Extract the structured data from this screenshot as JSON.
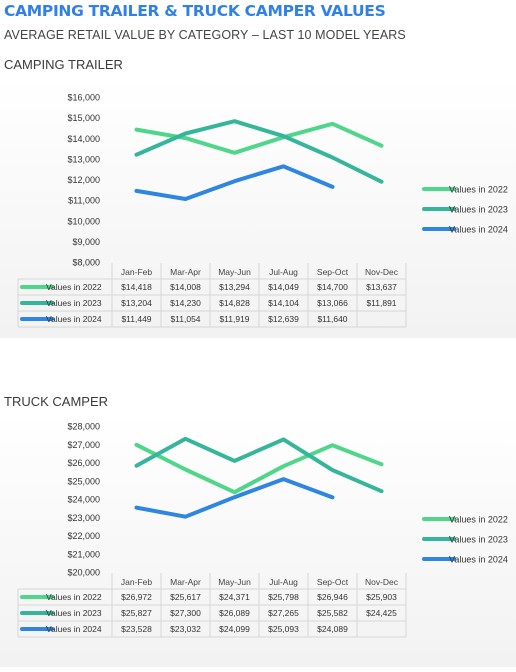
{
  "header": {
    "title": "CAMPING TRAILER & TRUCK CAMPER VALUES",
    "subtitle": "AVERAGE RETAIL VALUE BY CATEGORY – LAST 10 MODEL YEARS"
  },
  "sections": [
    {
      "label": "CAMPING TRAILER"
    },
    {
      "label": "TRUCK CAMPER"
    }
  ],
  "colors": {
    "2022": "#4fd68a",
    "2023": "#35b59a",
    "2024": "#2f86e0"
  },
  "chart_data": [
    {
      "type": "line",
      "title": "CAMPING TRAILER",
      "categories": [
        "Jan-Feb",
        "Mar-Apr",
        "May-Jun",
        "Jul-Aug",
        "Sep-Oct",
        "Nov-Dec"
      ],
      "ylim": [
        8000,
        16000
      ],
      "yticks": [
        "$8,000",
        "$9,000",
        "$10,000",
        "$11,000",
        "$12,000",
        "$13,000",
        "$14,000",
        "$15,000",
        "$16,000"
      ],
      "ytick_values": [
        8000,
        9000,
        10000,
        11000,
        12000,
        13000,
        14000,
        15000,
        16000
      ],
      "legend": "right",
      "data_table": true,
      "series": [
        {
          "name": "Values in 2022",
          "values": [
            14418,
            14008,
            13294,
            14049,
            14700,
            13637
          ],
          "labels": [
            "$14,418",
            "$14,008",
            "$13,294",
            "$14,049",
            "$14,700",
            "$13,637"
          ],
          "color": "#4fd68a"
        },
        {
          "name": "Values in 2023",
          "values": [
            13204,
            14230,
            14828,
            14104,
            13066,
            11891
          ],
          "labels": [
            "$13,204",
            "$14,230",
            "$14,828",
            "$14,104",
            "$13,066",
            "$11,891"
          ],
          "color": "#35b59a"
        },
        {
          "name": "Values in 2024",
          "values": [
            11449,
            11054,
            11919,
            12639,
            11640,
            null
          ],
          "labels": [
            "$11,449",
            "$11,054",
            "$11,919",
            "$12,639",
            "$11,640",
            ""
          ],
          "color": "#2f86e0"
        }
      ]
    },
    {
      "type": "line",
      "title": "TRUCK CAMPER",
      "categories": [
        "Jan-Feb",
        "Mar-Apr",
        "May-Jun",
        "Jul-Aug",
        "Sep-Oct",
        "Nov-Dec"
      ],
      "ylim": [
        20000,
        28000
      ],
      "yticks": [
        "$20,000",
        "$21,000",
        "$22,000",
        "$23,000",
        "$24,000",
        "$25,000",
        "$26,000",
        "$27,000",
        "$28,000"
      ],
      "ytick_values": [
        20000,
        21000,
        22000,
        23000,
        24000,
        25000,
        26000,
        27000,
        28000
      ],
      "legend": "right",
      "data_table": true,
      "series": [
        {
          "name": "Values in 2022",
          "values": [
            26972,
            25617,
            24371,
            25798,
            26946,
            25903
          ],
          "labels": [
            "$26,972",
            "$25,617",
            "$24,371",
            "$25,798",
            "$26,946",
            "$25,903"
          ],
          "color": "#4fd68a"
        },
        {
          "name": "Values in 2023",
          "values": [
            25827,
            27300,
            26089,
            27265,
            25582,
            24425
          ],
          "labels": [
            "$25,827",
            "$27,300",
            "$26,089",
            "$27,265",
            "$25,582",
            "$24,425"
          ],
          "color": "#35b59a"
        },
        {
          "name": "Values in 2024",
          "values": [
            23528,
            23032,
            24099,
            25093,
            24089,
            null
          ],
          "labels": [
            "$23,528",
            "$23,032",
            "$24,099",
            "$25,093",
            "$24,089",
            ""
          ],
          "color": "#2f86e0"
        }
      ]
    }
  ]
}
